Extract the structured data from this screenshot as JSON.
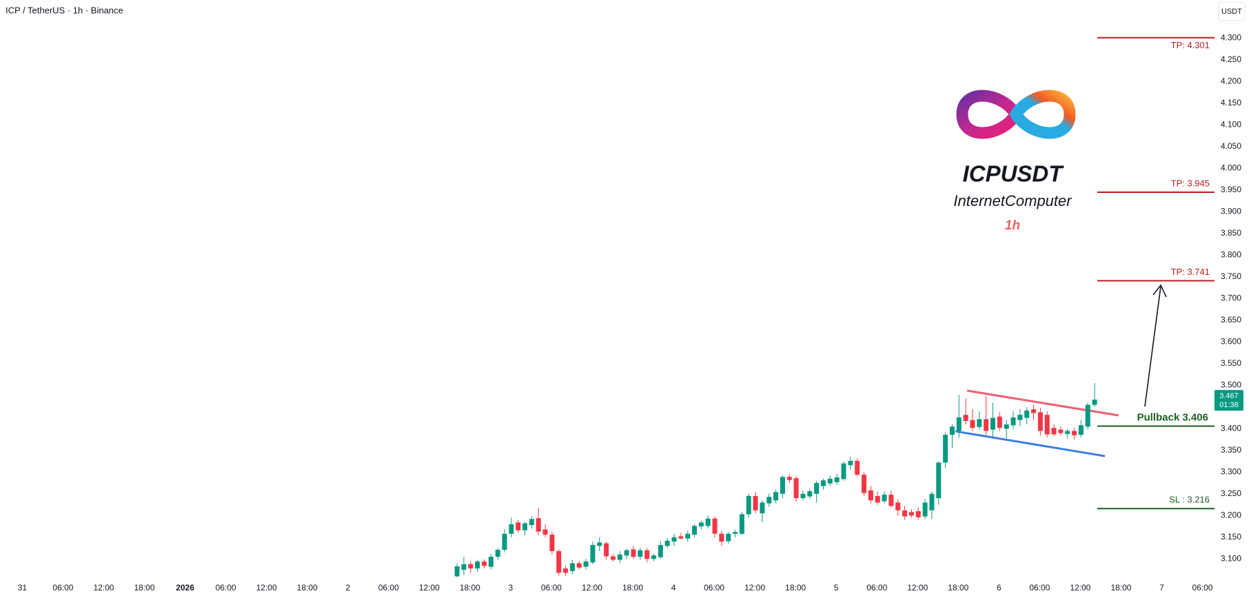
{
  "header": {
    "title": "ICP / TetherUS · 1h · Binance",
    "currency_button": "USDT"
  },
  "chart_data": {
    "type": "candlestick",
    "ylim": [
      3.056,
      4.388
    ],
    "yticks": [
      {
        "value": 3.1,
        "label": "3.100"
      },
      {
        "value": 3.15,
        "label": "3.150"
      },
      {
        "value": 3.2,
        "label": "3.200"
      },
      {
        "value": 3.25,
        "label": "3.250"
      },
      {
        "value": 3.3,
        "label": "3.300"
      },
      {
        "value": 3.35,
        "label": "3.350"
      },
      {
        "value": 3.4,
        "label": "3.400"
      },
      {
        "value": 3.45,
        "label": "3.450"
      },
      {
        "value": 3.5,
        "label": "3.500"
      },
      {
        "value": 3.55,
        "label": "3.550"
      },
      {
        "value": 3.6,
        "label": "3.600"
      },
      {
        "value": 3.65,
        "label": "3.650"
      },
      {
        "value": 3.7,
        "label": "3.700"
      },
      {
        "value": 3.75,
        "label": "3.750"
      },
      {
        "value": 3.8,
        "label": "3.800"
      },
      {
        "value": 3.85,
        "label": "3.850"
      },
      {
        "value": 3.9,
        "label": "3.900"
      },
      {
        "value": 3.95,
        "label": "3.950"
      },
      {
        "value": 4,
        "label": "4.000"
      },
      {
        "value": 4.05,
        "label": "4.050"
      },
      {
        "value": 4.1,
        "label": "4.100"
      },
      {
        "value": 4.15,
        "label": "4.150"
      },
      {
        "value": 4.2,
        "label": "4.200"
      },
      {
        "value": 4.25,
        "label": "4.250"
      },
      {
        "value": 4.3,
        "label": "4.300"
      }
    ],
    "xtick_labels": [
      "31",
      "06:00",
      "12:00",
      "18:00",
      "2026",
      "06:00",
      "12:00",
      "18:00",
      "2",
      "06:00",
      "12:00",
      "18:00",
      "3",
      "06:00",
      "12:00",
      "18:00",
      "4",
      "06:00",
      "12:00",
      "18:00",
      "5",
      "06:00",
      "12:00",
      "18:00",
      "6",
      "06:00",
      "12:00",
      "18:00",
      "7",
      "06:00"
    ],
    "up_color": "#089981",
    "down_color": "#f23645",
    "ohlc": [
      [
        3.06,
        3.09,
        3.058,
        3.083
      ],
      [
        3.075,
        3.105,
        3.062,
        3.088
      ],
      [
        3.088,
        3.095,
        3.068,
        3.078
      ],
      [
        3.078,
        3.098,
        3.07,
        3.094
      ],
      [
        3.094,
        3.099,
        3.078,
        3.084
      ],
      [
        3.082,
        3.112,
        3.076,
        3.105
      ],
      [
        3.105,
        3.125,
        3.098,
        3.121
      ],
      [
        3.121,
        3.168,
        3.115,
        3.158
      ],
      [
        3.158,
        3.195,
        3.15,
        3.18
      ],
      [
        3.184,
        3.19,
        3.16,
        3.166
      ],
      [
        3.166,
        3.185,
        3.155,
        3.182
      ],
      [
        3.178,
        3.198,
        3.17,
        3.192
      ],
      [
        3.194,
        3.218,
        3.155,
        3.163
      ],
      [
        3.168,
        3.18,
        3.15,
        3.156
      ],
      [
        3.156,
        3.162,
        3.11,
        3.118
      ],
      [
        3.118,
        3.122,
        3.062,
        3.068
      ],
      [
        3.078,
        3.085,
        3.06,
        3.068
      ],
      [
        3.072,
        3.098,
        3.065,
        3.09
      ],
      [
        3.09,
        3.096,
        3.075,
        3.08
      ],
      [
        3.082,
        3.1,
        3.076,
        3.094
      ],
      [
        3.092,
        3.14,
        3.088,
        3.132
      ],
      [
        3.13,
        3.15,
        3.118,
        3.138
      ],
      [
        3.136,
        3.14,
        3.098,
        3.106
      ],
      [
        3.106,
        3.112,
        3.094,
        3.098
      ],
      [
        3.098,
        3.118,
        3.09,
        3.11
      ],
      [
        3.108,
        3.124,
        3.1,
        3.12
      ],
      [
        3.122,
        3.13,
        3.1,
        3.105
      ],
      [
        3.105,
        3.126,
        3.098,
        3.12
      ],
      [
        3.12,
        3.125,
        3.092,
        3.1
      ],
      [
        3.1,
        3.112,
        3.095,
        3.108
      ],
      [
        3.104,
        3.14,
        3.1,
        3.132
      ],
      [
        3.13,
        3.148,
        3.125,
        3.142
      ],
      [
        3.14,
        3.158,
        3.13,
        3.15
      ],
      [
        3.152,
        3.16,
        3.145,
        3.147
      ],
      [
        3.147,
        3.165,
        3.14,
        3.158
      ],
      [
        3.156,
        3.18,
        3.15,
        3.176
      ],
      [
        3.175,
        3.188,
        3.168,
        3.184
      ],
      [
        3.176,
        3.2,
        3.17,
        3.193
      ],
      [
        3.193,
        3.198,
        3.15,
        3.158
      ],
      [
        3.158,
        3.165,
        3.13,
        3.14
      ],
      [
        3.141,
        3.162,
        3.135,
        3.158
      ],
      [
        3.158,
        3.168,
        3.15,
        3.162
      ],
      [
        3.158,
        3.208,
        3.155,
        3.203
      ],
      [
        3.203,
        3.25,
        3.195,
        3.245
      ],
      [
        3.245,
        3.255,
        3.205,
        3.212
      ],
      [
        3.205,
        3.235,
        3.185,
        3.23
      ],
      [
        3.228,
        3.25,
        3.22,
        3.243
      ],
      [
        3.235,
        3.26,
        3.228,
        3.254
      ],
      [
        3.25,
        3.292,
        3.24,
        3.289
      ],
      [
        3.289,
        3.295,
        3.275,
        3.282
      ],
      [
        3.286,
        3.292,
        3.232,
        3.24
      ],
      [
        3.24,
        3.258,
        3.235,
        3.25
      ],
      [
        3.244,
        3.262,
        3.238,
        3.256
      ],
      [
        3.25,
        3.28,
        3.23,
        3.275
      ],
      [
        3.268,
        3.285,
        3.26,
        3.281
      ],
      [
        3.274,
        3.292,
        3.268,
        3.285
      ],
      [
        3.277,
        3.296,
        3.27,
        3.288
      ],
      [
        3.284,
        3.325,
        3.28,
        3.32
      ],
      [
        3.316,
        3.335,
        3.305,
        3.326
      ],
      [
        3.326,
        3.332,
        3.29,
        3.294
      ],
      [
        3.294,
        3.3,
        3.245,
        3.252
      ],
      [
        3.258,
        3.268,
        3.228,
        3.235
      ],
      [
        3.245,
        3.255,
        3.225,
        3.23
      ],
      [
        3.233,
        3.255,
        3.228,
        3.248
      ],
      [
        3.248,
        3.258,
        3.218,
        3.222
      ],
      [
        3.23,
        3.238,
        3.2,
        3.212
      ],
      [
        3.212,
        3.222,
        3.19,
        3.198
      ],
      [
        3.208,
        3.215,
        3.195,
        3.2
      ],
      [
        3.21,
        3.218,
        3.19,
        3.196
      ],
      [
        3.198,
        3.238,
        3.192,
        3.23
      ],
      [
        3.212,
        3.255,
        3.192,
        3.25
      ],
      [
        3.24,
        3.325,
        3.225,
        3.322
      ],
      [
        3.322,
        3.392,
        3.31,
        3.386
      ],
      [
        3.386,
        3.41,
        3.355,
        3.405
      ],
      [
        3.395,
        3.478,
        3.38,
        3.426
      ],
      [
        3.432,
        3.47,
        3.41,
        3.418
      ],
      [
        3.42,
        3.445,
        3.395,
        3.402
      ],
      [
        3.404,
        3.44,
        3.398,
        3.422
      ],
      [
        3.422,
        3.475,
        3.385,
        3.395
      ],
      [
        3.398,
        3.46,
        3.38,
        3.425
      ],
      [
        3.428,
        3.438,
        3.395,
        3.402
      ],
      [
        3.4,
        3.42,
        3.378,
        3.41
      ],
      [
        3.408,
        3.44,
        3.398,
        3.426
      ],
      [
        3.42,
        3.445,
        3.405,
        3.432
      ],
      [
        3.425,
        3.45,
        3.41,
        3.442
      ],
      [
        3.445,
        3.455,
        3.42,
        3.436
      ],
      [
        3.438,
        3.448,
        3.385,
        3.395
      ],
      [
        3.432,
        3.44,
        3.38,
        3.387
      ],
      [
        3.402,
        3.41,
        3.382,
        3.387
      ],
      [
        3.398,
        3.405,
        3.385,
        3.39
      ],
      [
        3.388,
        3.4,
        3.378,
        3.395
      ],
      [
        3.395,
        3.402,
        3.375,
        3.385
      ],
      [
        3.386,
        3.42,
        3.38,
        3.408
      ],
      [
        3.405,
        3.46,
        3.398,
        3.455
      ],
      [
        3.455,
        3.505,
        3.45,
        3.467
      ]
    ],
    "last_price": 3.467,
    "countdown": "01:38",
    "levels": [
      {
        "label": "TP: 4.301",
        "value": 4.301,
        "color": "#b71c1c"
      },
      {
        "label": "TP: 3.945",
        "value": 3.945,
        "color": "#b71c1c"
      },
      {
        "label": "TP: 3.741",
        "value": 3.741,
        "color": "#b71c1c"
      },
      {
        "label": "Pullback 3.406",
        "value": 3.406,
        "color": "#1b5e20"
      },
      {
        "label": "SL : 3.216",
        "value": 3.216,
        "color": "#1b5e20"
      }
    ],
    "watermark": {
      "symbol": "ICPUSDT",
      "name": "InternetComputer",
      "interval": "1h"
    }
  }
}
